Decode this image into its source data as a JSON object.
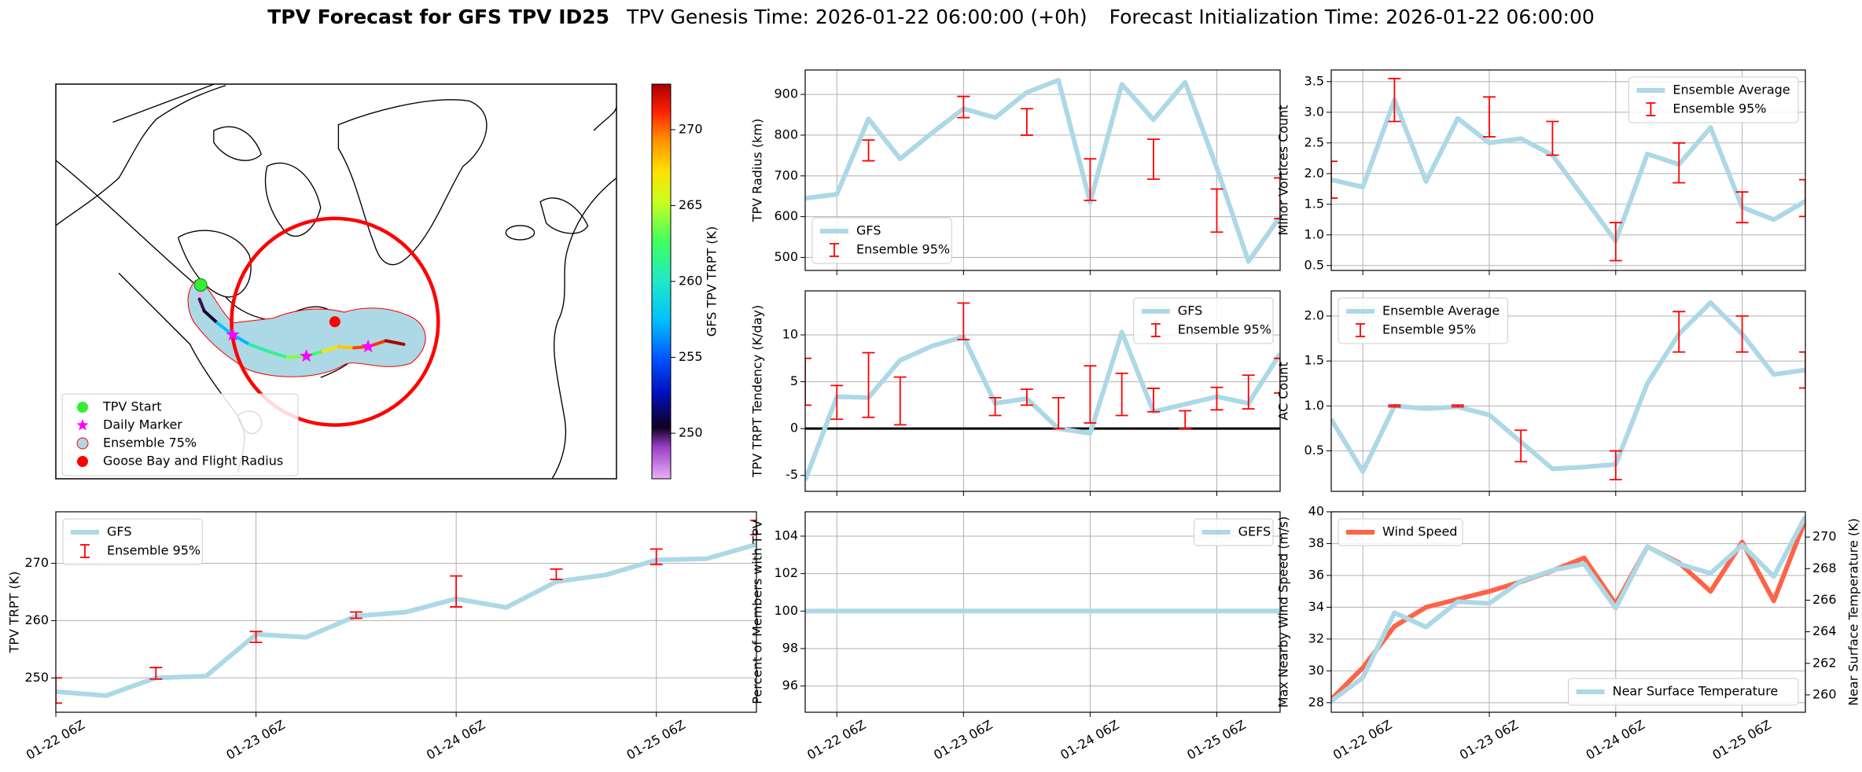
{
  "title": {
    "bold": "TPV Forecast for GFS TPV ID25",
    "genesis": "TPV Genesis Time: 2026-01-22 06:00:00 (+0h)",
    "init": "Forecast Initialization Time: 2026-01-22 06:00:00"
  },
  "chart_data": [
    {
      "type": "map",
      "legend": [
        {
          "name": "TPV Start",
          "color": "#33ee33"
        },
        {
          "name": "Daily Marker",
          "color": "#ff00ff"
        },
        {
          "name": "Ensemble 75%",
          "color": "#add8e6"
        },
        {
          "name": "Goose Bay and Flight Radius",
          "color": "#ff0000"
        }
      ],
      "colorbar": {
        "label": "GFS TPV TRPT (K)",
        "lim": [
          247,
          273
        ],
        "ticks": [
          250,
          255,
          260,
          265,
          270
        ]
      }
    },
    {
      "type": "line",
      "ylabel": "TPV TRPT (K)",
      "x": [
        "01-22 06Z",
        "01-22 12Z",
        "01-22 18Z",
        "01-23 00Z",
        "01-23 06Z",
        "01-23 12Z",
        "01-23 18Z",
        "01-24 00Z",
        "01-24 06Z",
        "01-24 12Z",
        "01-24 18Z",
        "01-25 00Z",
        "01-25 06Z",
        "01-25 12Z",
        "01-25 18Z"
      ],
      "xlim": [
        "01-22 06Z",
        "01-25 18Z"
      ],
      "xticks": [
        "01-22 06Z",
        "01-23 06Z",
        "01-24 06Z",
        "01-25 06Z"
      ],
      "ylim": [
        244,
        279
      ],
      "yticks": [
        250,
        260,
        270
      ],
      "grid": true,
      "legend": "upper left",
      "series": [
        {
          "name": "GFS",
          "color": "#add8e6",
          "values": [
            247.6,
            246.9,
            250.0,
            250.3,
            257.6,
            257.1,
            260.8,
            261.5,
            263.8,
            262.3,
            266.8,
            268.0,
            270.6,
            270.8,
            273.3
          ]
        }
      ],
      "ensemble": {
        "name": "Ensemble 95%",
        "color": "#ff0000",
        "low": [
          245.6,
          null,
          249.8,
          null,
          256.2,
          null,
          260.4,
          null,
          262.4,
          null,
          267.2,
          null,
          269.8,
          null,
          275.0
        ],
        "high": [
          250.0,
          null,
          251.8,
          null,
          258.1,
          null,
          261.5,
          null,
          267.8,
          null,
          269.0,
          null,
          272.5,
          null,
          277.5
        ]
      }
    },
    {
      "type": "line",
      "ylabel": "TPV Radius (km)",
      "x": [
        "01-22 00Z",
        "01-22 06Z",
        "01-22 12Z",
        "01-22 18Z",
        "01-23 00Z",
        "01-23 06Z",
        "01-23 12Z",
        "01-23 18Z",
        "01-24 00Z",
        "01-24 06Z",
        "01-24 12Z",
        "01-24 18Z",
        "01-25 00Z",
        "01-25 06Z",
        "01-25 12Z",
        "01-25 18Z"
      ],
      "xlim": [
        "01-22 00Z",
        "01-25 18Z"
      ],
      "xticks": [
        "01-22 06Z",
        "01-23 06Z",
        "01-24 06Z",
        "01-25 06Z"
      ],
      "ylim": [
        468,
        960
      ],
      "yticks": [
        500,
        600,
        700,
        800,
        900
      ],
      "grid": true,
      "legend": "lower left",
      "series": [
        {
          "name": "GFS",
          "color": "#add8e6",
          "values": [
            645,
            655,
            840,
            742,
            805,
            865,
            843,
            905,
            935,
            635,
            925,
            838,
            930,
            720,
            490,
            600
          ]
        }
      ],
      "ensemble": {
        "name": "Ensemble 95%",
        "color": "#ff0000",
        "low": [
          null,
          null,
          737,
          null,
          null,
          843,
          null,
          800,
          null,
          640,
          null,
          692,
          null,
          562,
          null,
          595
        ],
        "high": [
          null,
          null,
          788,
          null,
          null,
          895,
          null,
          865,
          null,
          742,
          null,
          790,
          null,
          668,
          null,
          695
        ]
      }
    },
    {
      "type": "line",
      "ylabel": "TPV TRPT Tendency (K/day)",
      "x": [
        "01-22 00Z",
        "01-22 06Z",
        "01-22 12Z",
        "01-22 18Z",
        "01-23 00Z",
        "01-23 06Z",
        "01-23 12Z",
        "01-23 18Z",
        "01-24 00Z",
        "01-24 06Z",
        "01-24 12Z",
        "01-24 18Z",
        "01-25 00Z",
        "01-25 06Z",
        "01-25 12Z",
        "01-25 18Z"
      ],
      "xlim": [
        "01-22 00Z",
        "01-25 18Z"
      ],
      "xticks": [
        "01-22 06Z",
        "01-23 06Z",
        "01-24 06Z",
        "01-25 06Z"
      ],
      "ylim": [
        -6.7,
        14.7
      ],
      "yticks": [
        -5,
        0,
        5,
        10
      ],
      "grid": true,
      "legend": "upper right",
      "hline": 0,
      "series": [
        {
          "name": "GFS",
          "color": "#add8e6",
          "values": [
            -5.5,
            3.4,
            3.3,
            7.3,
            8.8,
            9.8,
            2.7,
            3.2,
            0,
            -0.5,
            10.3,
            1.8,
            2.6,
            3.4,
            2.7,
            8.0
          ]
        }
      ],
      "ensemble": {
        "name": "Ensemble 95%",
        "color": "#ff0000",
        "low": [
          2.5,
          1.0,
          1.2,
          0.4,
          null,
          9.5,
          1.4,
          2.5,
          0.0,
          0.6,
          1.4,
          1.8,
          0.0,
          2.0,
          2.1,
          3.8
        ],
        "high": [
          7.5,
          4.6,
          8.1,
          5.5,
          null,
          13.4,
          3.3,
          4.2,
          3.3,
          6.7,
          5.9,
          4.3,
          1.9,
          4.4,
          5.7,
          7.5
        ]
      }
    },
    {
      "type": "line",
      "ylabel": "Percent of Members with TPV",
      "x": [
        "01-22 00Z",
        "01-22 06Z",
        "01-22 12Z",
        "01-22 18Z",
        "01-23 00Z",
        "01-23 06Z",
        "01-23 12Z",
        "01-23 18Z",
        "01-24 00Z",
        "01-24 06Z",
        "01-24 12Z",
        "01-24 18Z",
        "01-25 00Z",
        "01-25 06Z",
        "01-25 12Z",
        "01-25 18Z"
      ],
      "xlim": [
        "01-22 00Z",
        "01-25 18Z"
      ],
      "xticks": [
        "01-22 06Z",
        "01-23 06Z",
        "01-24 06Z",
        "01-25 06Z"
      ],
      "ylim": [
        94.6,
        105.3
      ],
      "yticks": [
        96,
        98,
        100,
        102,
        104
      ],
      "grid": true,
      "legend": "upper right",
      "series": [
        {
          "name": "GEFS",
          "color": "#add8e6",
          "values": [
            100,
            100,
            100,
            100,
            100,
            100,
            100,
            100,
            100,
            100,
            100,
            100,
            100,
            100,
            100,
            100
          ]
        }
      ]
    },
    {
      "type": "line",
      "ylabel": "Minor Vortices Count",
      "x": [
        "01-22 00Z",
        "01-22 06Z",
        "01-22 12Z",
        "01-22 18Z",
        "01-23 00Z",
        "01-23 06Z",
        "01-23 12Z",
        "01-23 18Z",
        "01-24 00Z",
        "01-24 06Z",
        "01-24 12Z",
        "01-24 18Z",
        "01-25 00Z",
        "01-25 06Z",
        "01-25 12Z",
        "01-25 18Z"
      ],
      "xlim": [
        "01-22 00Z",
        "01-25 18Z"
      ],
      "xticks": [
        "01-22 06Z",
        "01-23 06Z",
        "01-24 06Z",
        "01-25 06Z"
      ],
      "ylim": [
        0.42,
        3.69
      ],
      "yticks": [
        0.5,
        {
          "value": 1,
          "label": "1.0"
        },
        1.5,
        {
          "value": 2,
          "label": "2.0"
        },
        2.5,
        {
          "value": 3,
          "label": "3.0"
        },
        3.5
      ],
      "grid": true,
      "legend": "upper right",
      "series": [
        {
          "name": "Ensemble Average",
          "color": "#add8e6",
          "values": [
            1.9,
            1.78,
            3.2,
            1.87,
            2.9,
            2.5,
            2.57,
            2.3,
            1.6,
            0.9,
            2.32,
            2.15,
            2.75,
            1.45,
            1.25,
            1.55
          ]
        }
      ],
      "ensemble": {
        "name": "Ensemble 95%",
        "color": "#ff0000",
        "low": [
          1.6,
          null,
          2.85,
          null,
          null,
          2.6,
          null,
          2.3,
          null,
          0.58,
          null,
          1.85,
          null,
          1.2,
          null,
          1.3
        ],
        "high": [
          2.2,
          null,
          3.55,
          null,
          null,
          3.25,
          null,
          2.85,
          null,
          1.2,
          null,
          2.5,
          null,
          1.7,
          null,
          1.9
        ]
      }
    },
    {
      "type": "line",
      "ylabel": "AC Count",
      "x": [
        "01-22 00Z",
        "01-22 06Z",
        "01-22 12Z",
        "01-22 18Z",
        "01-23 00Z",
        "01-23 06Z",
        "01-23 12Z",
        "01-23 18Z",
        "01-24 00Z",
        "01-24 06Z",
        "01-24 12Z",
        "01-24 18Z",
        "01-25 00Z",
        "01-25 06Z",
        "01-25 12Z",
        "01-25 18Z"
      ],
      "xlim": [
        "01-22 00Z",
        "01-25 18Z"
      ],
      "xticks": [
        "01-22 06Z",
        "01-23 06Z",
        "01-24 06Z",
        "01-25 06Z"
      ],
      "ylim": [
        0.05,
        2.28
      ],
      "yticks": [
        0.5,
        {
          "value": 1,
          "label": "1.0"
        },
        1.5,
        {
          "value": 2,
          "label": "2.0"
        }
      ],
      "grid": true,
      "legend": "upper left",
      "series": [
        {
          "name": "Ensemble Average",
          "color": "#add8e6",
          "values": [
            0.85,
            0.27,
            1.0,
            0.97,
            0.99,
            0.9,
            0.6,
            0.3,
            0.32,
            0.35,
            1.25,
            1.8,
            2.15,
            1.8,
            1.35,
            1.4
          ]
        }
      ],
      "ensemble": {
        "name": "Ensemble 95%",
        "color": "#ff0000",
        "low": [
          null,
          null,
          0.99,
          null,
          0.99,
          null,
          0.38,
          null,
          null,
          0.18,
          null,
          1.6,
          null,
          1.6,
          null,
          1.2
        ],
        "high": [
          null,
          null,
          1.01,
          null,
          1.01,
          null,
          0.73,
          null,
          null,
          0.5,
          null,
          2.05,
          null,
          2.0,
          null,
          1.6
        ]
      }
    },
    {
      "type": "line",
      "ylabel": "Max Nearby Wind Speed (m/s)",
      "y2label": "Near Surface Temperature (K)",
      "y_color": "#ff6347",
      "y2_color": "#4169e1",
      "x": [
        "01-22 00Z",
        "01-22 06Z",
        "01-22 12Z",
        "01-22 18Z",
        "01-23 00Z",
        "01-23 06Z",
        "01-23 12Z",
        "01-23 18Z",
        "01-24 00Z",
        "01-24 06Z",
        "01-24 12Z",
        "01-24 18Z",
        "01-25 00Z",
        "01-25 06Z",
        "01-25 12Z",
        "01-25 18Z"
      ],
      "xlim": [
        "01-22 00Z",
        "01-25 18Z"
      ],
      "xticks": [
        "01-22 06Z",
        "01-23 06Z",
        "01-24 06Z",
        "01-25 06Z"
      ],
      "ylim": [
        27.4,
        40
      ],
      "yticks": [
        28,
        30,
        32,
        34,
        36,
        38,
        40
      ],
      "y2lim": [
        258.9,
        271.6
      ],
      "y2ticks": [
        260,
        262,
        264,
        266,
        268,
        270
      ],
      "grid": true,
      "legend": "upper left",
      "y2legend": "lower right",
      "series": [
        {
          "name": "Wind Speed",
          "color": "#ff6347",
          "values": [
            28.2,
            30.2,
            32.8,
            34.0,
            34.5,
            35.0,
            35.6,
            36.3,
            37.1,
            34.2,
            37.8,
            36.8,
            35.0,
            38.1,
            34.4,
            39.5
          ]
        },
        {
          "name": "Near Surface Temperature",
          "color": "#add8e6",
          "axis": "y2",
          "values": [
            259.6,
            261.1,
            265.2,
            264.3,
            265.9,
            265.8,
            267.2,
            267.9,
            268.3,
            265.5,
            269.4,
            268.3,
            267.7,
            269.5,
            267.5,
            271.3
          ]
        }
      ]
    }
  ]
}
